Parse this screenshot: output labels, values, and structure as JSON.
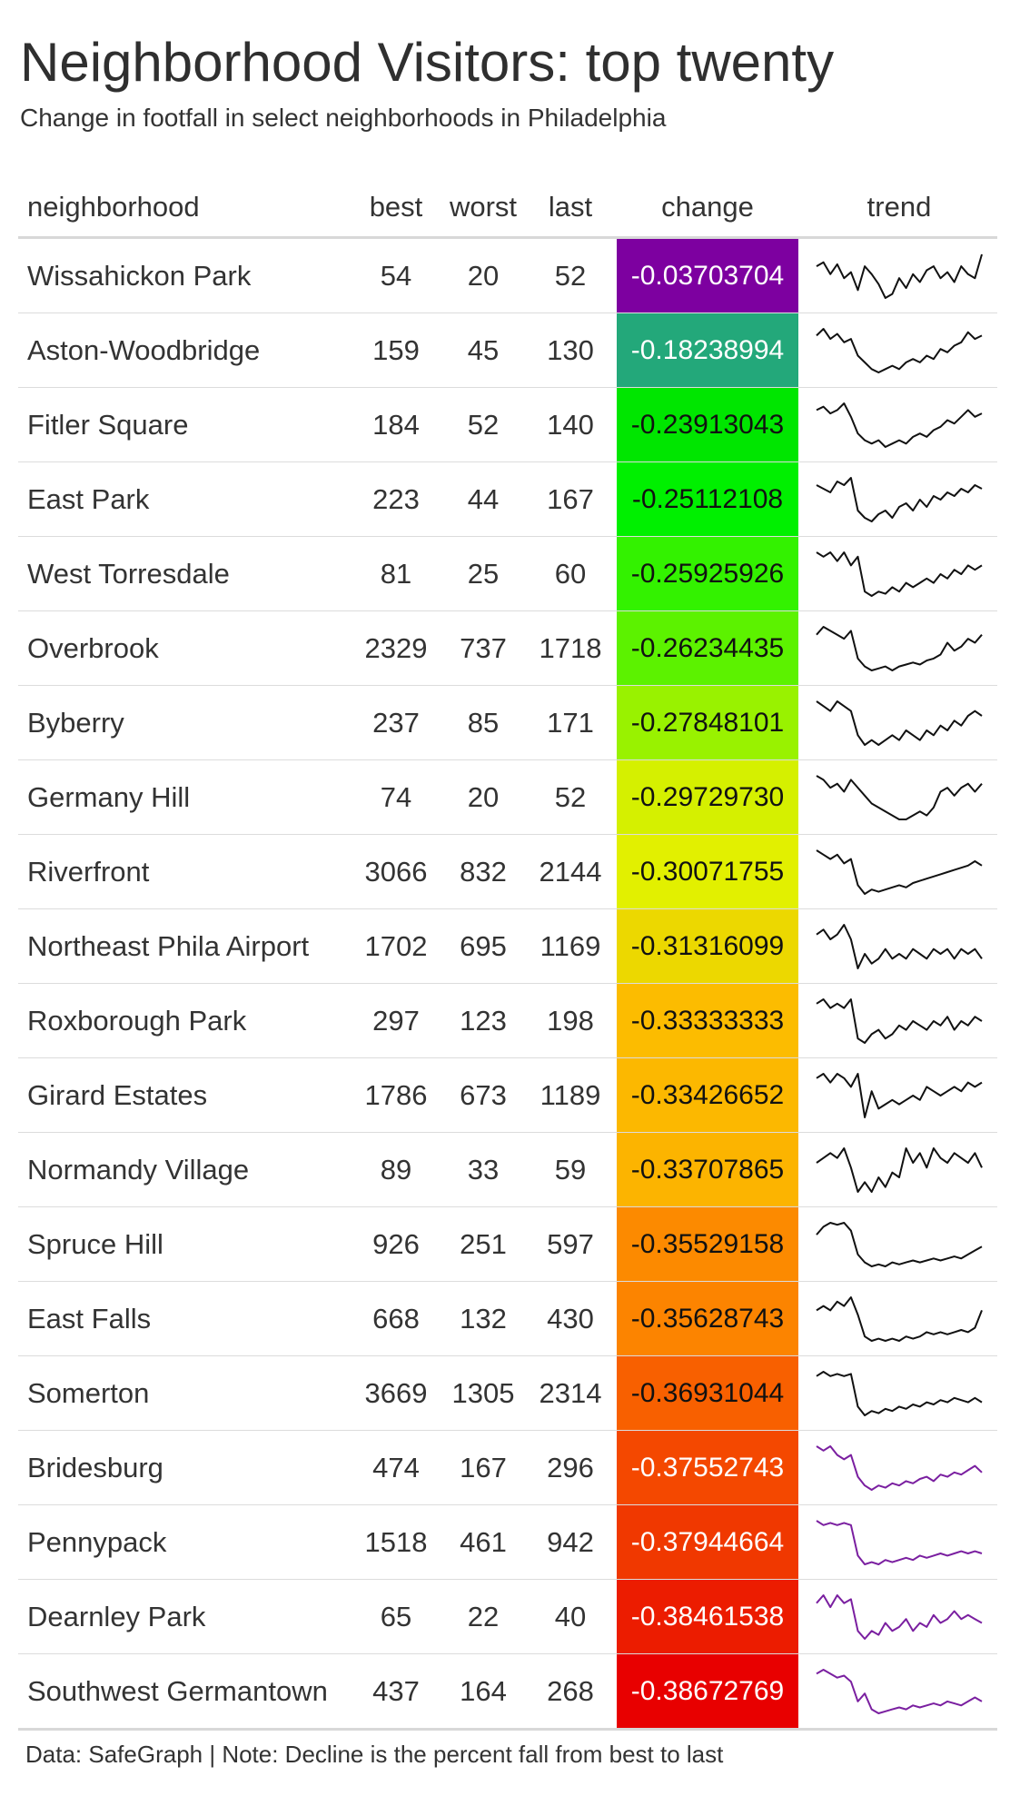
{
  "title": "Neighborhood Visitors: top twenty",
  "subtitle": "Change in footfall in select neighborhoods in Philadelphia",
  "columns": {
    "neighborhood": "neighborhood",
    "best": "best",
    "worst": "worst",
    "last": "last",
    "change": "change",
    "trend": "trend"
  },
  "footnote": "Data: SafeGraph | Note: Decline is the percent fall from best to last",
  "rows": [
    {
      "neighborhood": "Wissahickon Park",
      "best": "54",
      "worst": "20",
      "last": "52",
      "change": "-0.03703704",
      "bg": "#7d00a0",
      "fg": "#ffffff",
      "trend_color": "#111111",
      "trend": [
        44,
        46,
        40,
        45,
        38,
        41,
        32,
        44,
        40,
        35,
        28,
        30,
        38,
        33,
        40,
        36,
        42,
        44,
        38,
        41,
        36,
        44,
        40,
        38,
        50
      ]
    },
    {
      "neighborhood": "Aston-Woodbridge",
      "best": "159",
      "worst": "45",
      "last": "130",
      "change": "-0.18238994",
      "bg": "#23a87a",
      "fg": "#ffffff",
      "trend_color": "#111111",
      "trend": [
        44,
        48,
        42,
        45,
        40,
        42,
        32,
        28,
        24,
        22,
        24,
        26,
        24,
        28,
        30,
        28,
        32,
        30,
        36,
        34,
        38,
        40,
        46,
        42,
        44
      ]
    },
    {
      "neighborhood": "Fitler Square",
      "best": "184",
      "worst": "52",
      "last": "140",
      "change": "-0.23913043",
      "bg": "#00e600",
      "fg": "#111111",
      "trend_color": "#111111",
      "trend": [
        44,
        46,
        42,
        44,
        48,
        40,
        30,
        26,
        24,
        26,
        22,
        24,
        26,
        24,
        28,
        30,
        28,
        32,
        34,
        38,
        36,
        40,
        44,
        40,
        42
      ]
    },
    {
      "neighborhood": "East Park",
      "best": "223",
      "worst": "44",
      "last": "167",
      "change": "-0.25112108",
      "bg": "#00f000",
      "fg": "#111111",
      "trend_color": "#111111",
      "trend": [
        44,
        42,
        40,
        46,
        44,
        48,
        30,
        26,
        24,
        28,
        30,
        26,
        32,
        34,
        30,
        36,
        32,
        38,
        36,
        40,
        38,
        42,
        40,
        44,
        42
      ]
    },
    {
      "neighborhood": "West Torresdale",
      "best": "81",
      "worst": "25",
      "last": "60",
      "change": "-0.25925926",
      "bg": "#33f200",
      "fg": "#111111",
      "trend_color": "#111111",
      "trend": [
        44,
        42,
        44,
        40,
        44,
        38,
        42,
        26,
        24,
        26,
        25,
        28,
        26,
        30,
        28,
        30,
        32,
        30,
        34,
        32,
        36,
        34,
        38,
        36,
        38
      ]
    },
    {
      "neighborhood": "Overbrook",
      "best": "2329",
      "worst": "737",
      "last": "1718",
      "change": "-0.26234435",
      "bg": "#5cf200",
      "fg": "#111111",
      "trend_color": "#111111",
      "trend": [
        42,
        46,
        44,
        42,
        40,
        44,
        30,
        26,
        24,
        25,
        26,
        24,
        26,
        27,
        28,
        27,
        29,
        30,
        32,
        38,
        34,
        36,
        40,
        38,
        42
      ]
    },
    {
      "neighborhood": "Byberry",
      "best": "237",
      "worst": "85",
      "last": "171",
      "change": "-0.27848101",
      "bg": "#99f200",
      "fg": "#111111",
      "trend_color": "#111111",
      "trend": [
        44,
        42,
        40,
        44,
        42,
        40,
        30,
        26,
        28,
        26,
        28,
        30,
        28,
        32,
        30,
        28,
        32,
        30,
        34,
        32,
        36,
        34,
        38,
        40,
        38
      ]
    },
    {
      "neighborhood": "Germany Hill",
      "best": "74",
      "worst": "20",
      "last": "52",
      "change": "-0.29729730",
      "bg": "#d5f000",
      "fg": "#111111",
      "trend_color": "#111111",
      "trend": [
        44,
        42,
        38,
        40,
        36,
        42,
        38,
        34,
        30,
        28,
        26,
        24,
        22,
        22,
        24,
        26,
        24,
        28,
        36,
        38,
        34,
        38,
        40,
        36,
        40
      ]
    },
    {
      "neighborhood": "Riverfront",
      "best": "3066",
      "worst": "832",
      "last": "2144",
      "change": "-0.30071755",
      "bg": "#e2f000",
      "fg": "#111111",
      "trend_color": "#111111",
      "trend": [
        44,
        42,
        40,
        42,
        38,
        40,
        28,
        24,
        26,
        25,
        26,
        27,
        28,
        27,
        29,
        30,
        31,
        32,
        33,
        34,
        35,
        36,
        37,
        39,
        37
      ]
    },
    {
      "neighborhood": "Northeast Phila Airport",
      "best": "1702",
      "worst": "695",
      "last": "1169",
      "change": "-0.31316099",
      "bg": "#ecd800",
      "fg": "#111111",
      "trend_color": "#111111",
      "trend": [
        40,
        42,
        38,
        40,
        44,
        38,
        26,
        32,
        28,
        30,
        34,
        30,
        32,
        30,
        34,
        32,
        30,
        34,
        32,
        34,
        30,
        34,
        32,
        34,
        30
      ]
    },
    {
      "neighborhood": "Roxborough Park",
      "best": "297",
      "worst": "123",
      "last": "198",
      "change": "-0.33333333",
      "bg": "#fcbc00",
      "fg": "#111111",
      "trend_color": "#111111",
      "trend": [
        42,
        44,
        40,
        42,
        40,
        44,
        26,
        24,
        28,
        30,
        26,
        28,
        32,
        30,
        34,
        32,
        30,
        34,
        32,
        36,
        30,
        34,
        32,
        36,
        34
      ]
    },
    {
      "neighborhood": "Girard Estates",
      "best": "1786",
      "worst": "673",
      "last": "1189",
      "change": "-0.33426652",
      "bg": "#fcb800",
      "fg": "#111111",
      "trend_color": "#111111",
      "trend": [
        42,
        44,
        40,
        44,
        42,
        38,
        44,
        24,
        36,
        28,
        30,
        32,
        30,
        32,
        34,
        32,
        38,
        36,
        34,
        36,
        38,
        36,
        40,
        38,
        40
      ]
    },
    {
      "neighborhood": "Normandy Village",
      "best": "89",
      "worst": "33",
      "last": "59",
      "change": "-0.33707865",
      "bg": "#fcb400",
      "fg": "#111111",
      "trend_color": "#111111",
      "trend": [
        40,
        42,
        44,
        42,
        46,
        38,
        28,
        32,
        28,
        34,
        30,
        36,
        34,
        46,
        40,
        44,
        38,
        46,
        42,
        40,
        44,
        42,
        40,
        44,
        38
      ]
    },
    {
      "neighborhood": "Spruce Hill",
      "best": "926",
      "worst": "251",
      "last": "597",
      "change": "-0.35529158",
      "bg": "#fc8a00",
      "fg": "#111111",
      "trend_color": "#111111",
      "trend": [
        40,
        44,
        46,
        45,
        46,
        42,
        30,
        26,
        24,
        25,
        24,
        26,
        25,
        26,
        27,
        26,
        27,
        28,
        27,
        28,
        29,
        28,
        30,
        32,
        34
      ]
    },
    {
      "neighborhood": "East Falls",
      "best": "668",
      "worst": "132",
      "last": "430",
      "change": "-0.35628743",
      "bg": "#fc8400",
      "fg": "#111111",
      "trend_color": "#111111",
      "trend": [
        38,
        40,
        38,
        42,
        40,
        44,
        36,
        26,
        24,
        25,
        24,
        25,
        24,
        26,
        25,
        26,
        28,
        27,
        28,
        27,
        28,
        29,
        28,
        30,
        38
      ]
    },
    {
      "neighborhood": "Somerton",
      "best": "3669",
      "worst": "1305",
      "last": "2314",
      "change": "-0.36931044",
      "bg": "#f86000",
      "fg": "#111111",
      "trend_color": "#111111",
      "trend": [
        44,
        46,
        44,
        45,
        44,
        45,
        30,
        26,
        28,
        27,
        29,
        28,
        30,
        29,
        31,
        30,
        32,
        31,
        33,
        32,
        34,
        33,
        32,
        34,
        32
      ]
    },
    {
      "neighborhood": "Bridesburg",
      "best": "474",
      "worst": "167",
      "last": "296",
      "change": "-0.37552743",
      "bg": "#f44800",
      "fg": "#ffffff",
      "trend_color": "#7a1fa0",
      "trend": [
        44,
        42,
        44,
        40,
        38,
        40,
        30,
        26,
        24,
        26,
        25,
        27,
        26,
        28,
        27,
        29,
        30,
        28,
        31,
        30,
        32,
        31,
        33,
        35,
        32
      ]
    },
    {
      "neighborhood": "Pennypack",
      "best": "1518",
      "worst": "461",
      "last": "942",
      "change": "-0.37944664",
      "bg": "#f03800",
      "fg": "#ffffff",
      "trend_color": "#7a1fa0",
      "trend": [
        44,
        42,
        43,
        42,
        43,
        42,
        28,
        24,
        25,
        24,
        26,
        25,
        26,
        27,
        26,
        28,
        27,
        28,
        29,
        28,
        29,
        30,
        29,
        30,
        29
      ]
    },
    {
      "neighborhood": "Dearnley Park",
      "best": "65",
      "worst": "22",
      "last": "40",
      "change": "-0.38461538",
      "bg": "#ec1c00",
      "fg": "#ffffff",
      "trend_color": "#7a1fa0",
      "trend": [
        40,
        44,
        38,
        44,
        40,
        42,
        26,
        22,
        26,
        24,
        30,
        26,
        28,
        32,
        26,
        30,
        28,
        34,
        30,
        32,
        36,
        32,
        34,
        32,
        30
      ]
    },
    {
      "neighborhood": "Southwest Germantown",
      "best": "437",
      "worst": "164",
      "last": "268",
      "change": "-0.38672769",
      "bg": "#e80000",
      "fg": "#ffffff",
      "trend_color": "#7a1fa0",
      "trend": [
        44,
        46,
        44,
        42,
        43,
        40,
        30,
        34,
        26,
        24,
        25,
        26,
        27,
        26,
        28,
        27,
        28,
        29,
        28,
        30,
        29,
        28,
        30,
        32,
        30
      ]
    }
  ]
}
